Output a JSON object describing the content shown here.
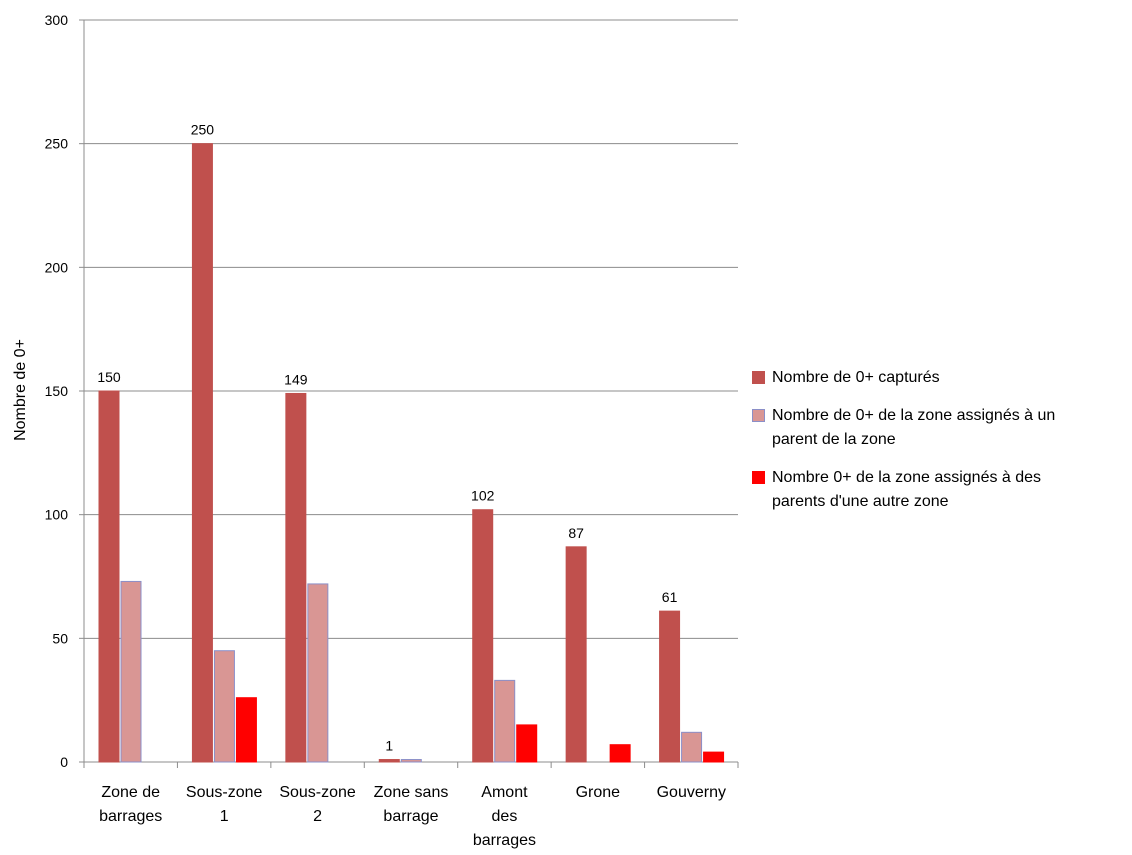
{
  "chart_data": {
    "type": "bar",
    "ylabel": "Nombre de 0+",
    "xlabel": "",
    "ylim": [
      0,
      300
    ],
    "yticks": [
      "0",
      "50",
      "100",
      "150",
      "200",
      "250",
      "300"
    ],
    "grid": true,
    "legend_position": "right",
    "categories": [
      [
        "Zone de",
        "barrages"
      ],
      [
        "Sous-zone",
        "1"
      ],
      [
        "Sous-zone",
        "2"
      ],
      [
        "Zone sans",
        "barrage"
      ],
      [
        "Amont",
        "des",
        "barrages"
      ],
      [
        "Grone"
      ],
      [
        "Gouverny"
      ]
    ],
    "series": [
      {
        "name": "Nombre de  0+ capturés",
        "color": "#C0504D",
        "border": "#C0504D",
        "values": [
          150,
          250,
          149,
          1,
          102,
          87,
          61
        ],
        "data_labels": [
          "150",
          "250",
          "149",
          "1",
          "102",
          "87",
          "61"
        ]
      },
      {
        "name": "Nombre de 0+  de la zone assignés à un parent de la zone",
        "color": "#D99694",
        "border": "#8B8FC8",
        "values": [
          73,
          45,
          72,
          1,
          33,
          0,
          12
        ]
      },
      {
        "name": "Nombre 0+  de la zone assignés à des parents d'une autre zone",
        "color": "#FF0000",
        "border": "#FF0000",
        "values": [
          0,
          26,
          0,
          0,
          15,
          7,
          4
        ]
      }
    ]
  },
  "legend": {
    "items": [
      {
        "lines": [
          "Nombre de  0+ capturés"
        ]
      },
      {
        "lines": [
          "Nombre de 0+  de la zone assignés à un",
          "parent de la zone"
        ]
      },
      {
        "lines": [
          "Nombre 0+  de la zone assignés à des",
          "parents d'une autre zone"
        ]
      }
    ]
  }
}
